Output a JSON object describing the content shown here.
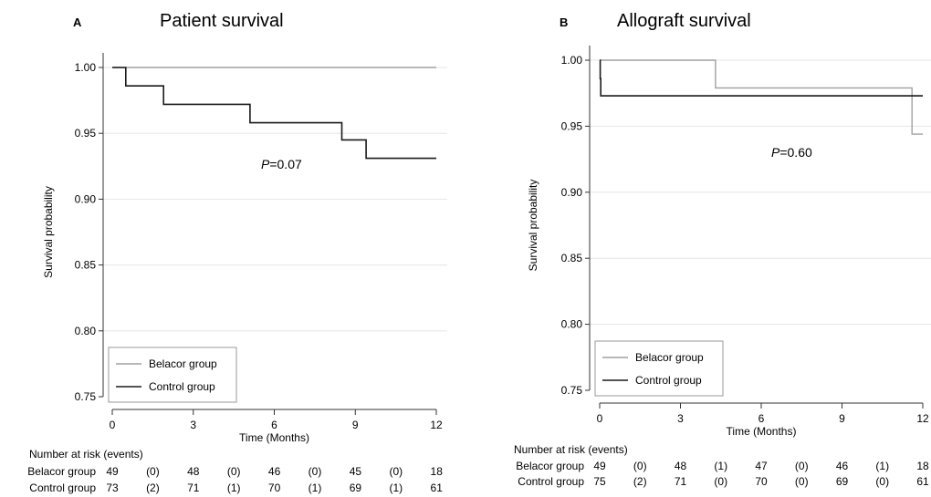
{
  "chart_data": [
    {
      "type": "line",
      "panel_letter": "A",
      "title": "Patient survival",
      "xlabel": "Time (Months)",
      "ylabel": "Survival probability",
      "xlim": [
        0,
        12
      ],
      "ylim": [
        0.75,
        1.0
      ],
      "xticks": [
        "0",
        "3",
        "6",
        "9",
        "12"
      ],
      "yticks": [
        "0.75",
        "0.80",
        "0.85",
        "0.90",
        "0.95",
        "1.00"
      ],
      "grid": "horizontal",
      "legend_position": "bottom-left",
      "annotation": "P=0.07",
      "series": [
        {
          "name": "Belacor group",
          "color": "#a0a0a0",
          "x": [
            0,
            12
          ],
          "y": [
            1.0,
            1.0
          ]
        },
        {
          "name": "Control group",
          "color": "#1a1a1a",
          "x": [
            0,
            0.5,
            1.9,
            5.1,
            8.5,
            9.4,
            12
          ],
          "y": [
            1.0,
            0.986,
            0.972,
            0.958,
            0.945,
            0.931,
            0.931
          ]
        }
      ],
      "risk_table": {
        "header": "Number at risk (events)",
        "rows": [
          {
            "label": "Belacor group",
            "cells": [
              "49",
              "(0)",
              "48",
              "(0)",
              "46",
              "(0)",
              "45",
              "(0)",
              "18"
            ]
          },
          {
            "label": "Control group",
            "cells": [
              "73",
              "(2)",
              "71",
              "(1)",
              "70",
              "(1)",
              "69",
              "(1)",
              "61"
            ]
          }
        ]
      }
    },
    {
      "type": "line",
      "panel_letter": "B",
      "title": "Allograft survival",
      "xlabel": "Time (Months)",
      "ylabel": "Survival probability",
      "xlim": [
        0,
        12
      ],
      "ylim": [
        0.75,
        1.0
      ],
      "xticks": [
        "0",
        "3",
        "6",
        "9",
        "12"
      ],
      "yticks": [
        "0.75",
        "0.80",
        "0.85",
        "0.90",
        "0.95",
        "1.00"
      ],
      "grid": "horizontal",
      "legend_position": "bottom-left",
      "annotation": "P=0.60",
      "series": [
        {
          "name": "Belacor group",
          "color": "#a0a0a0",
          "x": [
            0,
            4.3,
            11.6,
            12
          ],
          "y": [
            1.0,
            0.979,
            0.944,
            0.944
          ]
        },
        {
          "name": "Control group",
          "color": "#1a1a1a",
          "x": [
            0,
            0.02,
            0.04,
            12
          ],
          "y": [
            1.0,
            0.986,
            0.973,
            0.973
          ]
        }
      ],
      "risk_table": {
        "header": "Number at risk (events)",
        "rows": [
          {
            "label": "Belacor group",
            "cells": [
              "49",
              "(0)",
              "48",
              "(1)",
              "47",
              "(0)",
              "46",
              "(1)",
              "18"
            ]
          },
          {
            "label": "Control group",
            "cells": [
              "75",
              "(2)",
              "71",
              "(0)",
              "70",
              "(0)",
              "69",
              "(0)",
              "61"
            ]
          }
        ]
      }
    }
  ]
}
